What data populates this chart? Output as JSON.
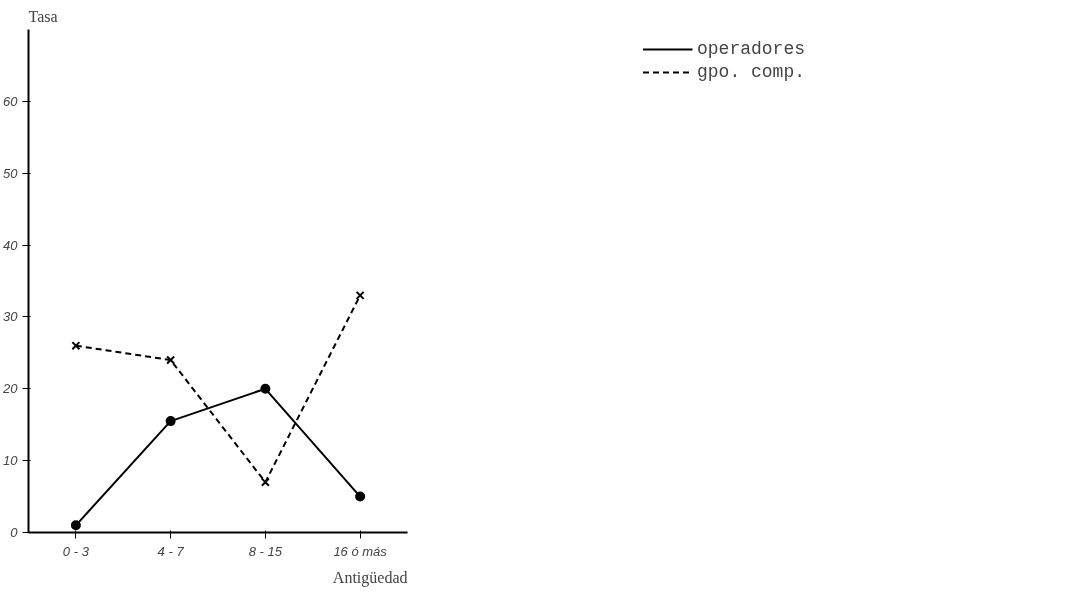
{
  "chart_data": {
    "type": "line",
    "xlabel": "Antigüedad",
    "ylabel": "Tasa",
    "categories": [
      "0 - 3",
      "4 - 7",
      "8 - 15",
      "16 ó más"
    ],
    "series": [
      {
        "name": "operadores",
        "color": "#000000",
        "values": [
          1,
          15.5,
          20,
          5
        ],
        "line_style": "solid",
        "marker": "circle"
      },
      {
        "name": "gpo. comp.",
        "color": "#000000",
        "values": [
          26,
          24,
          7,
          33
        ],
        "line_style": "dashed",
        "marker": "cross"
      }
    ],
    "ylim": [
      0,
      70
    ],
    "yticks": [
      0,
      10,
      20,
      30,
      40,
      50,
      60
    ],
    "grid": false,
    "legend": "top right"
  }
}
